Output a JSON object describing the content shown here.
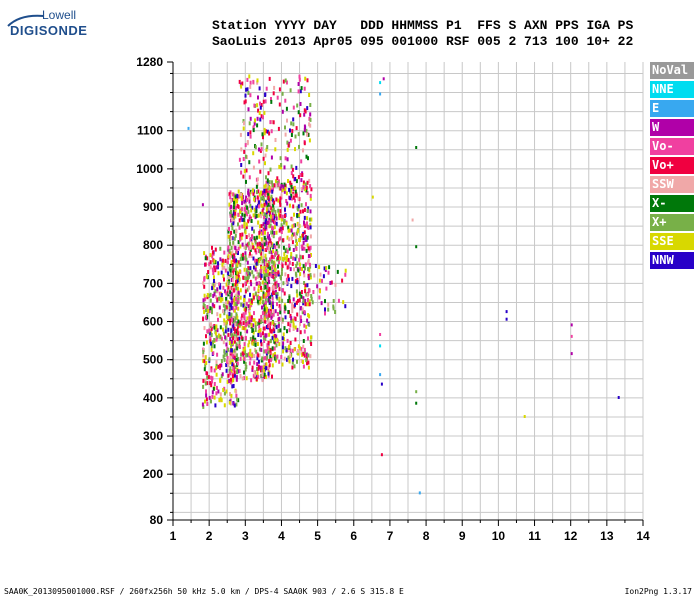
{
  "logo": {
    "top_text": "Lowell",
    "main_text": "DIGISONDE"
  },
  "header": {
    "line1": "Station YYYY DAY   DDD HHMMSS P1  FFS S AXN PPS IGA PS",
    "line2": "SaoLuis 2013 Apr05 095 001000 RSF 005 2 713 100 10+ 22"
  },
  "footer": {
    "left": "SAA0K_2013095001000.RSF / 260fx256h 50 kHz 5.0 km / DPS-4 SAA0K 903 / 2.6 S 315.8 E",
    "right": "Ion2Png 1.3.17"
  },
  "legend": [
    {
      "label": "NoVal",
      "color": "#999999"
    },
    {
      "label": "NNE",
      "color": "#00dcf0"
    },
    {
      "label": "E",
      "color": "#38a8f0"
    },
    {
      "label": "W",
      "color": "#b000a8"
    },
    {
      "label": "Vo-",
      "color": "#f040a0"
    },
    {
      "label": "Vo+",
      "color": "#f00040"
    },
    {
      "label": "SSW",
      "color": "#f0a8a8"
    },
    {
      "label": "X-",
      "color": "#00780a"
    },
    {
      "label": "X+",
      "color": "#78b048"
    },
    {
      "label": "SSE",
      "color": "#d8d800"
    },
    {
      "label": "NNW",
      "color": "#2800c8"
    }
  ],
  "chart_data": {
    "type": "scatter",
    "title": "",
    "xlabel": "",
    "ylabel": "",
    "xlim": [
      1,
      14
    ],
    "ylim": [
      80,
      1280
    ],
    "x_ticks": [
      1,
      2,
      3,
      4,
      5,
      6,
      7,
      8,
      9,
      10,
      11,
      12,
      13,
      14
    ],
    "y_ticks": [
      80,
      200,
      300,
      400,
      500,
      600,
      700,
      800,
      900,
      1000,
      1100,
      1280
    ],
    "grid": true,
    "legend_position": "right",
    "echo_clusters": [
      {
        "note": "dense F-layer trace",
        "x_range": [
          1.8,
          2.8
        ],
        "y_range": [
          380,
          800
        ],
        "count": 420
      },
      {
        "note": "dense F-layer trace",
        "x_range": [
          2.5,
          3.8
        ],
        "y_range": [
          450,
          950
        ],
        "count": 900
      },
      {
        "note": "dense F-layer trace",
        "x_range": [
          3.5,
          4.8
        ],
        "y_range": [
          480,
          980
        ],
        "count": 650
      },
      {
        "note": "upper scatter",
        "x_range": [
          2.8,
          4.8
        ],
        "y_range": [
          950,
          1250
        ],
        "count": 220
      },
      {
        "note": "sparse tail",
        "x_range": [
          4.8,
          5.8
        ],
        "y_range": [
          620,
          760
        ],
        "count": 40
      }
    ],
    "isolated_points": [
      {
        "x": 1.4,
        "y": 1110,
        "mode": "E"
      },
      {
        "x": 1.8,
        "y": 910,
        "mode": "W"
      },
      {
        "x": 6.7,
        "y": 1230,
        "mode": "NNE"
      },
      {
        "x": 6.7,
        "y": 1200,
        "mode": "E"
      },
      {
        "x": 6.8,
        "y": 1240,
        "mode": "W"
      },
      {
        "x": 6.5,
        "y": 930,
        "mode": "SSE"
      },
      {
        "x": 7.6,
        "y": 870,
        "mode": "SSW"
      },
      {
        "x": 7.7,
        "y": 1060,
        "mode": "X-"
      },
      {
        "x": 7.7,
        "y": 800,
        "mode": "X-"
      },
      {
        "x": 6.7,
        "y": 570,
        "mode": "Vo-"
      },
      {
        "x": 6.7,
        "y": 540,
        "mode": "NNE"
      },
      {
        "x": 6.7,
        "y": 465,
        "mode": "E"
      },
      {
        "x": 6.75,
        "y": 440,
        "mode": "NNW"
      },
      {
        "x": 6.75,
        "y": 255,
        "mode": "Vo+"
      },
      {
        "x": 7.7,
        "y": 420,
        "mode": "X+"
      },
      {
        "x": 7.7,
        "y": 390,
        "mode": "X-"
      },
      {
        "x": 7.8,
        "y": 155,
        "mode": "E"
      },
      {
        "x": 10.2,
        "y": 630,
        "mode": "NNW"
      },
      {
        "x": 10.2,
        "y": 610,
        "mode": "NNW"
      },
      {
        "x": 10.7,
        "y": 355,
        "mode": "SSE"
      },
      {
        "x": 12.0,
        "y": 595,
        "mode": "W"
      },
      {
        "x": 12.0,
        "y": 565,
        "mode": "Vo-"
      },
      {
        "x": 12.0,
        "y": 520,
        "mode": "W"
      },
      {
        "x": 13.3,
        "y": 405,
        "mode": "NNW"
      }
    ]
  }
}
